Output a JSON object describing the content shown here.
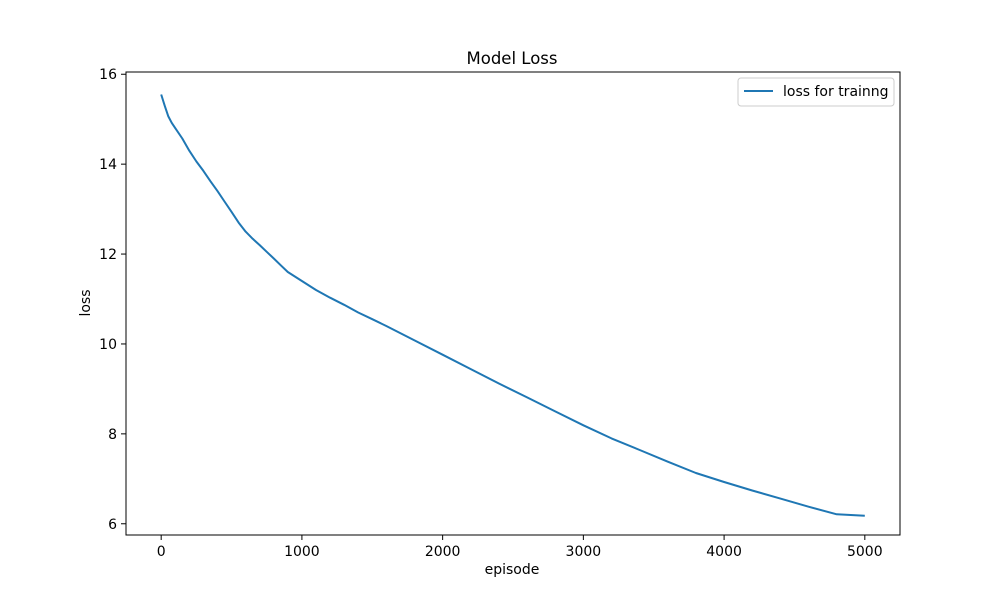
{
  "chart_data": {
    "type": "line",
    "title": "Model Loss",
    "xlabel": "episode",
    "ylabel": "loss",
    "xlim": [
      -250,
      5250
    ],
    "ylim": [
      5.75,
      16.05
    ],
    "xticks": [
      0,
      1000,
      2000,
      3000,
      4000,
      5000
    ],
    "yticks": [
      6,
      8,
      10,
      12,
      14,
      16
    ],
    "grid": false,
    "legend_position": "top-right",
    "series": [
      {
        "name": "loss for trainng",
        "color": "#1f77b4",
        "x": [
          0,
          25,
          50,
          75,
          100,
          150,
          200,
          250,
          300,
          350,
          400,
          450,
          500,
          550,
          600,
          650,
          700,
          750,
          800,
          850,
          900,
          1000,
          1100,
          1200,
          1300,
          1400,
          1500,
          1600,
          1800,
          2000,
          2200,
          2400,
          2600,
          2800,
          3000,
          3200,
          3400,
          3600,
          3800,
          4000,
          4200,
          4400,
          4600,
          4800,
          5000
        ],
        "y": [
          15.55,
          15.3,
          15.07,
          14.92,
          14.8,
          14.57,
          14.3,
          14.06,
          13.85,
          13.62,
          13.4,
          13.17,
          12.94,
          12.7,
          12.5,
          12.34,
          12.2,
          12.05,
          11.9,
          11.75,
          11.6,
          11.4,
          11.2,
          11.03,
          10.87,
          10.7,
          10.55,
          10.4,
          10.08,
          9.76,
          9.44,
          9.12,
          8.81,
          8.5,
          8.19,
          7.9,
          7.64,
          7.38,
          7.13,
          6.93,
          6.74,
          6.56,
          6.38,
          6.21,
          6.18
        ]
      }
    ]
  }
}
